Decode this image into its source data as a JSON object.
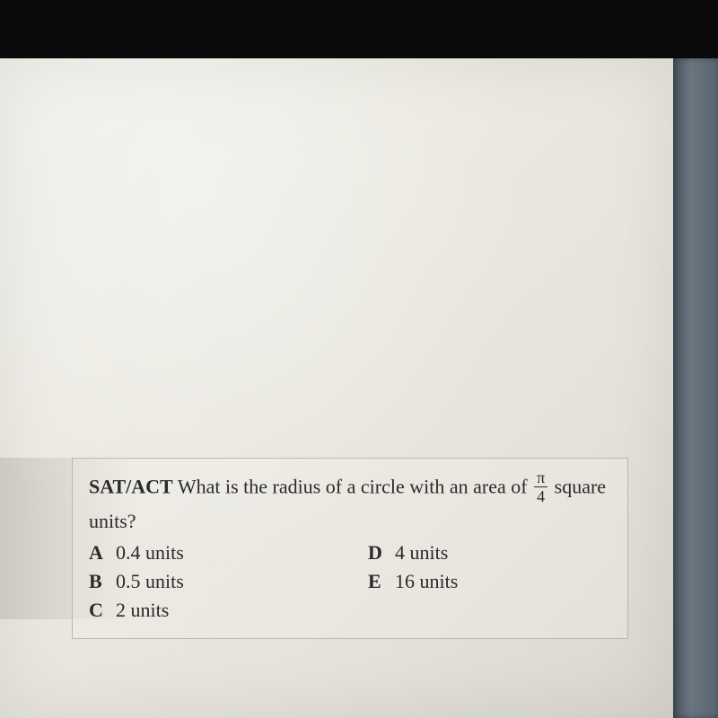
{
  "question": {
    "label": "SAT/ACT",
    "text_before": "What is the radius of a circle with an area of",
    "fraction_num": "π",
    "fraction_den": "4",
    "text_after": "square units?"
  },
  "answers": {
    "a": {
      "letter": "A",
      "text": "0.4 units"
    },
    "b": {
      "letter": "B",
      "text": "0.5 units"
    },
    "c": {
      "letter": "C",
      "text": "2 units"
    },
    "d": {
      "letter": "D",
      "text": "4 units"
    },
    "e": {
      "letter": "E",
      "text": "16 units"
    }
  },
  "styling": {
    "paper_bg": "#f0eee6",
    "text_color": "#2a2a2a",
    "border_color": "#b8b8b0",
    "font_family": "Georgia, Times New Roman, serif",
    "question_fontsize": 22,
    "fraction_fontsize": 18,
    "dark_bg": "#0a0a0a",
    "edge_color": "#5a6570"
  }
}
